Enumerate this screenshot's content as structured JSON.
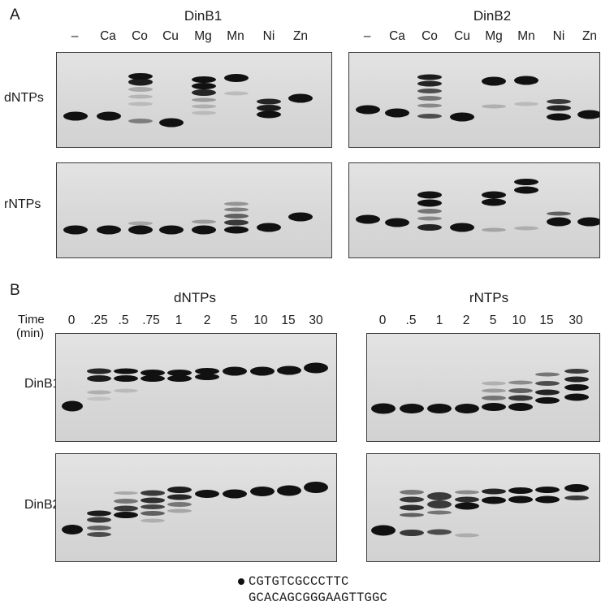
{
  "panel_a": {
    "letter": "A",
    "title_left": "DinB1",
    "title_right": "DinB2",
    "lanes": [
      "–",
      "Ca",
      "Co",
      "Cu",
      "Mg",
      "Mn",
      "Ni",
      "Zn"
    ],
    "row_labels": [
      "dNTPs",
      "rNTPs"
    ]
  },
  "panel_b": {
    "letter": "B",
    "title_left": "dNTPs",
    "title_right": "rNTPs",
    "time_label": "Time",
    "time_unit": "(min)",
    "times_left": [
      "0",
      ".25",
      ".5",
      ".75",
      "1",
      "2",
      "5",
      "10",
      "15",
      "30"
    ],
    "times_right": [
      "0",
      ".5",
      "1",
      "2",
      "5",
      "10",
      "15",
      "30"
    ],
    "row_labels": [
      "DinB1",
      "DinB2"
    ]
  },
  "substrate": {
    "primer": "CGTGTCGCCCTTC",
    "template": "GCACAGCGGGAAGTTGGC"
  }
}
